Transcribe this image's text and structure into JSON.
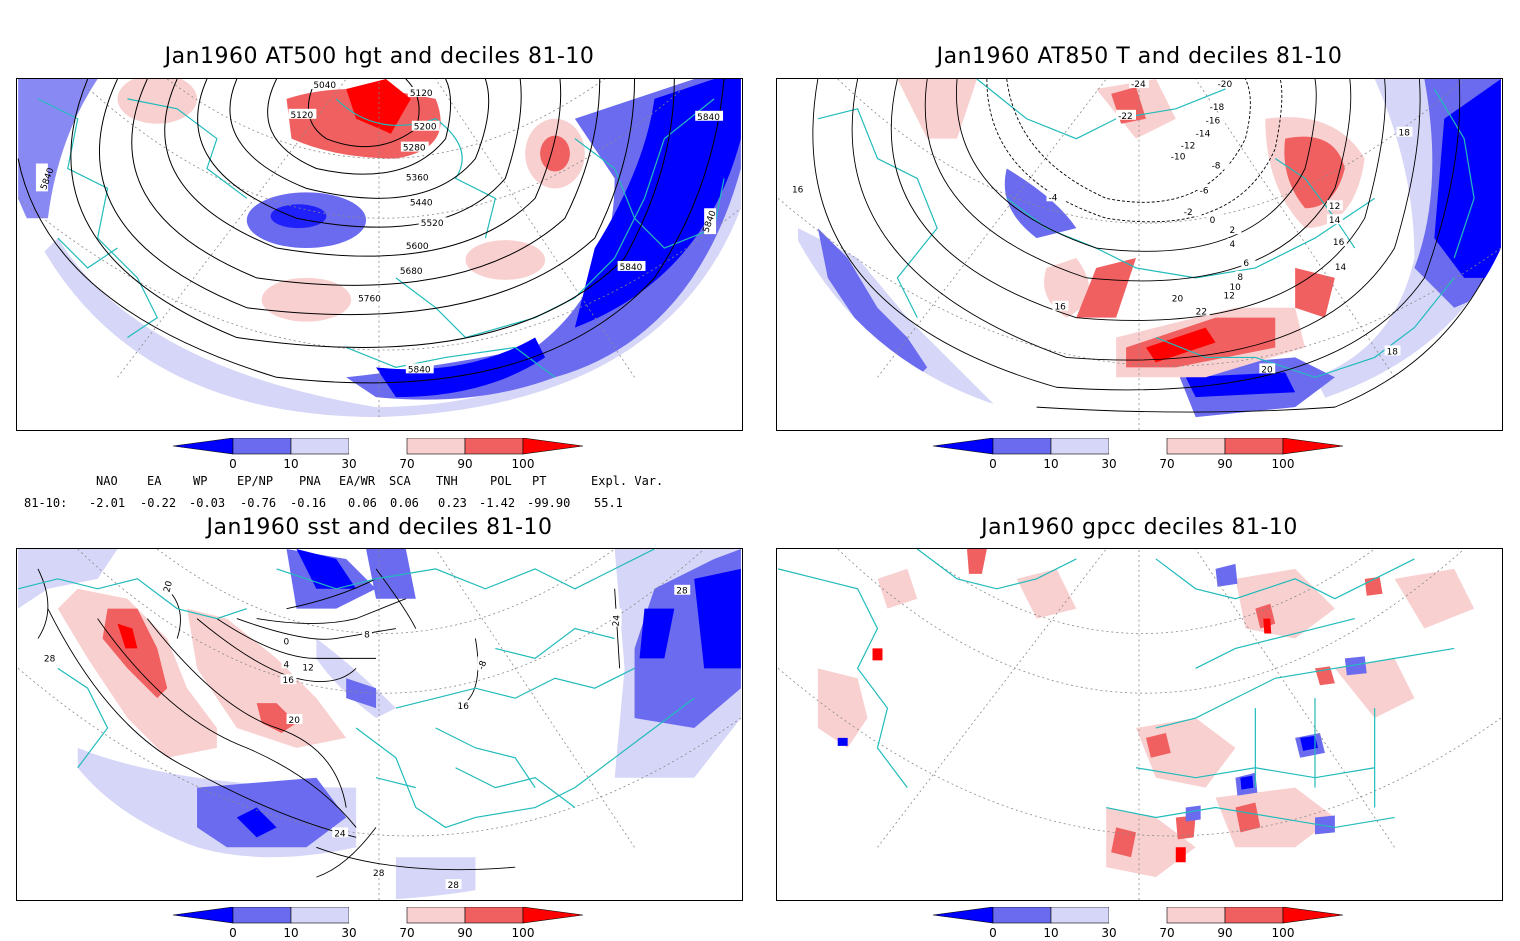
{
  "panels": [
    {
      "title": "Jan1960 AT500 hgt and deciles 81-10",
      "contour_labels": [
        "5040",
        "5120",
        "5120",
        "5200",
        "5280",
        "5360",
        "5440",
        "5520",
        "5600",
        "5680",
        "5760",
        "5840",
        "5840",
        "5840",
        "5840",
        "5840"
      ]
    },
    {
      "title": "Jan1960 AT850 T and deciles 81-10",
      "contour_labels": [
        "-24",
        "-22",
        "-20",
        "-18",
        "-16",
        "-14",
        "-12",
        "-10",
        "-8",
        "-6",
        "-4",
        "-2",
        "0",
        "2",
        "4",
        "6",
        "8",
        "10",
        "12",
        "14",
        "16",
        "18",
        "20",
        "22",
        "12",
        "14",
        "16",
        "16",
        "18",
        "20"
      ]
    },
    {
      "title": "Jan1960 sst and deciles 81-10",
      "contour_labels": [
        "28",
        "20",
        "28",
        "0",
        "4",
        "8",
        "12",
        "16",
        "20",
        "24",
        "28",
        "28",
        "24",
        "28",
        "-8",
        "16"
      ]
    },
    {
      "title": "Jan1960 gpcc deciles 81-10",
      "contour_labels": []
    }
  ],
  "colorbar": {
    "ticks": [
      "0",
      "10",
      "30",
      "70",
      "90",
      "100"
    ],
    "colors": [
      "#0000ff",
      "#6b6bf0",
      "#d6d6f8",
      "#ffffff",
      "#f9d0d0",
      "#f06060",
      "#ff0000"
    ]
  },
  "indices": {
    "headers": [
      "NAO",
      "EA",
      "WP",
      "EP/NP",
      "PNA",
      "EA/WR",
      "SCA",
      "TNH",
      "POL",
      "PT",
      "Expl. Var."
    ],
    "row_label": "81-10:",
    "values": [
      "-2.01",
      "-0.22",
      "-0.03",
      "-0.76",
      "-0.16",
      "0.06",
      "0.06",
      "0.23",
      "-1.42",
      "-99.90",
      "55.1"
    ]
  },
  "colors": {
    "coast": "#22bbbb",
    "contour": "#000000",
    "grid": "#888888"
  }
}
